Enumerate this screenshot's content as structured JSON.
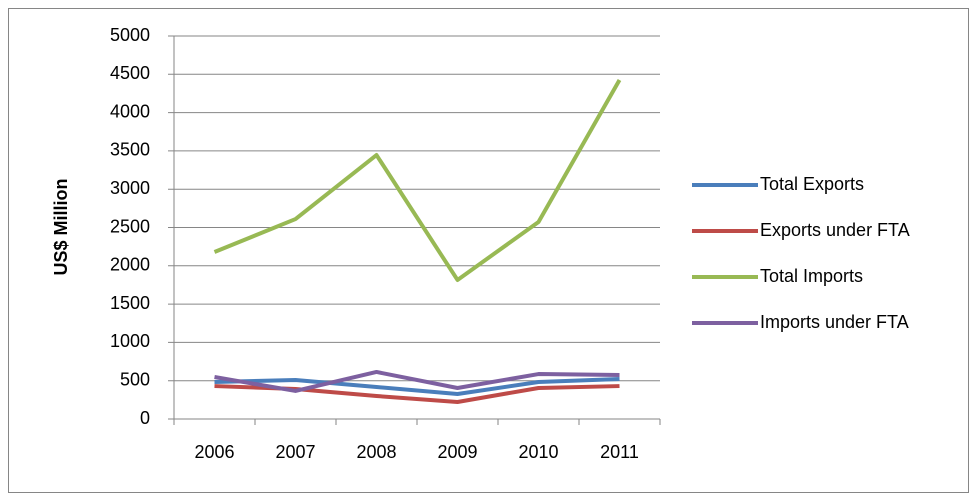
{
  "chart_data": {
    "type": "line",
    "y_label": "US$ Million",
    "categories": [
      "2006",
      "2007",
      "2008",
      "2009",
      "2010",
      "2011"
    ],
    "series": [
      {
        "name": "Total Exports",
        "color": "#4a7ebb",
        "values": [
          483,
          509,
          418,
          326,
          483,
          522
        ]
      },
      {
        "name": "Exports under FTA",
        "color": "#be4b48",
        "values": [
          430,
          392,
          300,
          222,
          405,
          430
        ]
      },
      {
        "name": "Total Imports",
        "color": "#98b954",
        "values": [
          2180,
          2610,
          3446,
          1815,
          2572,
          4425
        ]
      },
      {
        "name": "Imports under FTA",
        "color": "#7d60a0",
        "values": [
          548,
          366,
          614,
          405,
          587,
          574
        ]
      }
    ],
    "ylim": [
      0,
      5000
    ],
    "yticks": [
      0,
      500,
      1000,
      1500,
      2000,
      2500,
      3000,
      3500,
      4000,
      4500,
      5000
    ],
    "grid": true,
    "legend": "right"
  }
}
